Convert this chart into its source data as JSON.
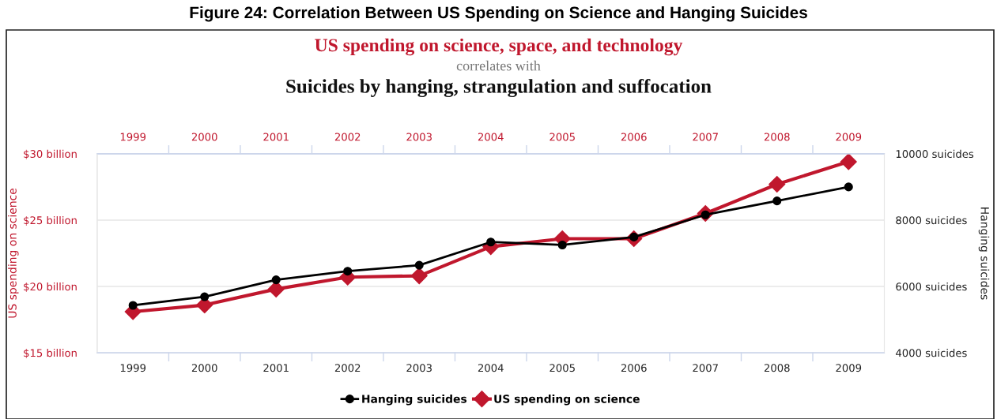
{
  "chart_data": {
    "type": "line",
    "title": "Figure 24: Correlation Between US Spending on Science and Hanging Suicides",
    "annotations": [
      "US spending on science, space, and technology",
      "correlates with",
      "Suicides by hanging, strangulation and suffocation"
    ],
    "categories": [
      "1999",
      "2000",
      "2001",
      "2002",
      "2003",
      "2004",
      "2005",
      "2006",
      "2007",
      "2008",
      "2009"
    ],
    "series": [
      {
        "name": "Hanging suicides",
        "color": "#000000",
        "axis": "y2",
        "marker": "circle",
        "values": [
          5430,
          5690,
          6200,
          6460,
          6640,
          7340,
          7250,
          7490,
          8160,
          8580,
          9000
        ]
      },
      {
        "name": "US spending on science",
        "color": "#c0172d",
        "marker": "diamond",
        "values": [
          18.1,
          18.6,
          19.8,
          20.7,
          20.8,
          23.0,
          23.6,
          23.6,
          25.5,
          27.7,
          29.4
        ]
      }
    ],
    "ylabel": "US spending on science",
    "y2label": "Hanging suicides",
    "ylim": [
      15,
      30
    ],
    "yticks": [
      {
        "value": 15,
        "label": "$15 billion"
      },
      {
        "value": 20,
        "label": "$20 billion"
      },
      {
        "value": 25,
        "label": "$25 billion"
      },
      {
        "value": 30,
        "label": "$30 billion"
      }
    ],
    "y2lim": [
      4000,
      10000
    ],
    "y2ticks": [
      {
        "value": 4000,
        "label": "4000 suicides"
      },
      {
        "value": 6000,
        "label": "6000 suicides"
      },
      {
        "value": 8000,
        "label": "8000 suicides"
      },
      {
        "value": 10000,
        "label": "10000 suicides"
      }
    ],
    "grid": "y",
    "legend": "bottom",
    "line_style": "solid"
  }
}
